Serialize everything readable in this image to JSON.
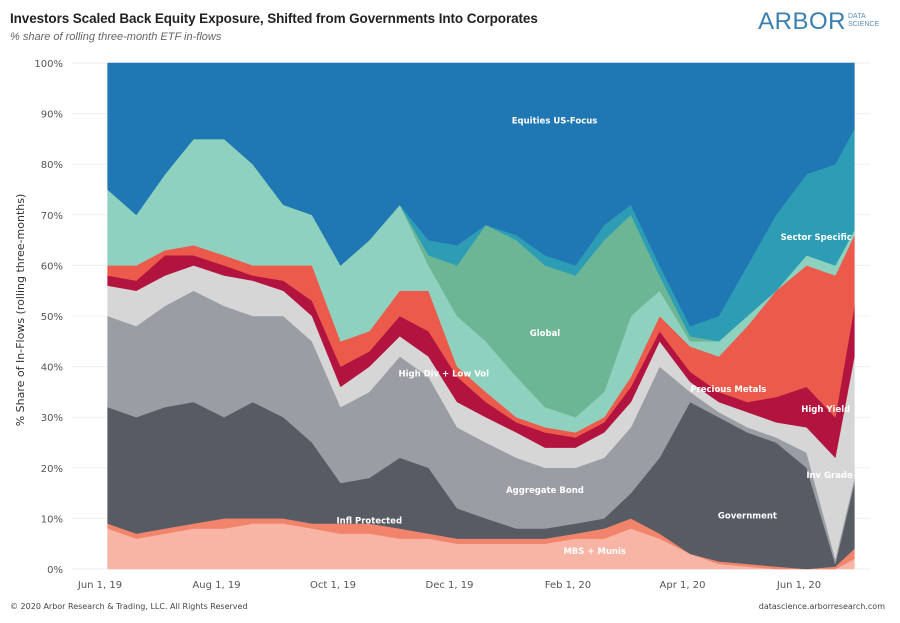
{
  "header": {
    "title": "Investors Scaled Back Equity Exposure, Shifted from Governments Into Corporates",
    "subtitle": "% share of rolling three-month ETF in-flows",
    "logo_text": "ARBOR",
    "logo_sub": "DATA SCIENCE"
  },
  "footer": {
    "copyright": "© 2020 Arbor Research & Trading, LLC. All Rights Reserved",
    "site": "datascience.arborresearch.com"
  },
  "chart_data": {
    "type": "area",
    "stacked": true,
    "title": "Investors Scaled Back Equity Exposure, Shifted from Governments Into Corporates",
    "subtitle": "% share of rolling three-month ETF in-flows",
    "xlabel": "",
    "ylabel": "% Share of In-Flows (rolling three-months)",
    "ylim": [
      0,
      100
    ],
    "yticks": [
      "0%",
      "10%",
      "20%",
      "30%",
      "40%",
      "50%",
      "60%",
      "70%",
      "80%",
      "90%",
      "100%"
    ],
    "xticks": [
      {
        "date": "2019-06-01",
        "label": "Jun 1, 19"
      },
      {
        "date": "2019-08-01",
        "label": "Aug 1, 19"
      },
      {
        "date": "2019-10-01",
        "label": "Oct 1, 19"
      },
      {
        "date": "2019-12-01",
        "label": "Dec 1, 19"
      },
      {
        "date": "2020-02-01",
        "label": "Feb 1, 20"
      },
      {
        "date": "2020-04-01",
        "label": "Apr 1, 20"
      },
      {
        "date": "2020-06-01",
        "label": "Jun 1, 20"
      }
    ],
    "grid": true,
    "legend": "none (direct labels)",
    "x": [
      "2019-06-05",
      "2019-06-20",
      "2019-07-05",
      "2019-07-20",
      "2019-08-05",
      "2019-08-20",
      "2019-09-05",
      "2019-09-20",
      "2019-10-05",
      "2019-10-20",
      "2019-11-05",
      "2019-11-20",
      "2019-12-05",
      "2019-12-20",
      "2020-01-05",
      "2020-01-20",
      "2020-02-05",
      "2020-02-20",
      "2020-03-05",
      "2020-03-20",
      "2020-04-05",
      "2020-04-20",
      "2020-05-05",
      "2020-05-20",
      "2020-06-05",
      "2020-06-20",
      "2020-06-30"
    ],
    "series": [
      {
        "name": "MBS + Munis",
        "color": "#f8b5a6",
        "values": [
          8,
          6,
          7,
          8,
          8,
          9,
          9,
          8,
          7,
          7,
          6,
          6,
          5,
          5,
          5,
          5,
          6,
          6,
          8,
          6,
          3,
          1,
          0.5,
          0,
          0,
          0,
          2
        ]
      },
      {
        "name": "Infl Protected",
        "color": "#f2846c",
        "values": [
          1,
          1,
          1,
          1,
          2,
          1,
          1,
          1,
          2,
          2,
          2,
          1,
          1,
          1,
          1,
          1,
          1,
          2,
          2,
          1,
          0,
          0.5,
          0.5,
          0.5,
          0,
          0.5,
          2
        ]
      },
      {
        "name": "Government",
        "color": "#565b64",
        "values": [
          23,
          23,
          24,
          24,
          20,
          23,
          20,
          16,
          8,
          9,
          14,
          13,
          6,
          4,
          2,
          2,
          2,
          2,
          5,
          15,
          30,
          28.5,
          26,
          24.5,
          20,
          0.5,
          13
        ]
      },
      {
        "name": "Aggregate Bond",
        "color": "#9b9da4",
        "values": [
          18,
          18,
          20,
          22,
          22,
          17,
          20,
          20,
          15,
          17,
          20,
          18,
          16,
          15,
          14,
          12,
          11,
          12,
          13,
          18,
          2,
          1,
          1,
          1,
          3,
          1,
          1
        ]
      },
      {
        "name": "Inv Grade",
        "color": "#d6d6d6",
        "values": [
          6,
          7,
          6,
          5,
          6,
          7,
          5,
          5,
          4,
          5,
          4,
          4,
          5,
          5,
          5,
          4,
          4,
          5,
          5,
          5,
          2,
          2,
          3,
          3,
          5,
          20,
          24
        ]
      },
      {
        "name": "High Yield",
        "color": "#b3143f",
        "values": [
          2,
          2,
          4,
          2,
          2,
          1,
          2,
          3,
          4,
          3,
          4,
          5,
          5,
          3,
          2,
          3,
          2,
          2,
          3,
          2,
          2,
          2,
          2,
          5,
          8,
          8,
          10
        ]
      },
      {
        "name": "Precious Metals",
        "color": "#ec5a4c",
        "values": [
          2,
          3,
          1,
          2,
          2,
          2,
          3,
          7,
          5,
          4,
          5,
          8,
          2,
          2,
          1,
          1,
          1,
          1,
          2,
          3,
          5,
          7,
          15,
          21,
          24,
          28,
          14
        ]
      },
      {
        "name": "High Div + Low Vol",
        "color": "#8fd1bf",
        "values": [
          15,
          10,
          15,
          21,
          23,
          20,
          12,
          10,
          15,
          18,
          17,
          5,
          10,
          10,
          8,
          4,
          3,
          5,
          12,
          5,
          1,
          3,
          2,
          0,
          2,
          2,
          1
        ]
      },
      {
        "name": "Global",
        "color": "#6cb595",
        "values": [
          0,
          0,
          0,
          0,
          0,
          0,
          0,
          0,
          0,
          0,
          0,
          2,
          10,
          23,
          27,
          28,
          28,
          30,
          20,
          3,
          1,
          0,
          0,
          0,
          0,
          0,
          0
        ]
      },
      {
        "name": "Sector Specific",
        "color": "#2c9db4",
        "values": [
          0,
          0,
          0,
          0,
          0,
          0,
          0,
          0,
          0,
          0,
          0,
          3,
          4,
          0,
          1,
          2,
          2,
          3,
          2,
          2,
          2,
          5,
          10,
          15,
          16,
          20,
          20
        ]
      },
      {
        "name": "Equities US-Focus",
        "color": "#1f77b4",
        "values": [
          25,
          30,
          22,
          15,
          15,
          20,
          28,
          30,
          40,
          35,
          28,
          35,
          36,
          32,
          34,
          38,
          40,
          32,
          28,
          40,
          52,
          50,
          40,
          30,
          22,
          20,
          13
        ]
      }
    ],
    "annotations": [
      {
        "text": "Equities US-Focus",
        "date": "2020-01-25",
        "y": 88
      },
      {
        "text": "Sector Specific",
        "date": "2020-06-10",
        "y": 65
      },
      {
        "text": "Global",
        "date": "2020-01-20",
        "y": 46
      },
      {
        "text": "High Div + Low Vol",
        "date": "2019-11-28",
        "y": 38
      },
      {
        "text": "Precious Metals",
        "date": "2020-04-25",
        "y": 35
      },
      {
        "text": "High Yield",
        "date": "2020-06-15",
        "y": 31
      },
      {
        "text": "Aggregate Bond",
        "date": "2020-01-20",
        "y": 15
      },
      {
        "text": "Inv Grade",
        "date": "2020-06-17",
        "y": 18
      },
      {
        "text": "Government",
        "date": "2020-05-05",
        "y": 10
      },
      {
        "text": "Infl Protected",
        "date": "2019-10-20",
        "y": 9
      },
      {
        "text": "MBS + Munis",
        "date": "2020-02-15",
        "y": 3
      }
    ]
  }
}
